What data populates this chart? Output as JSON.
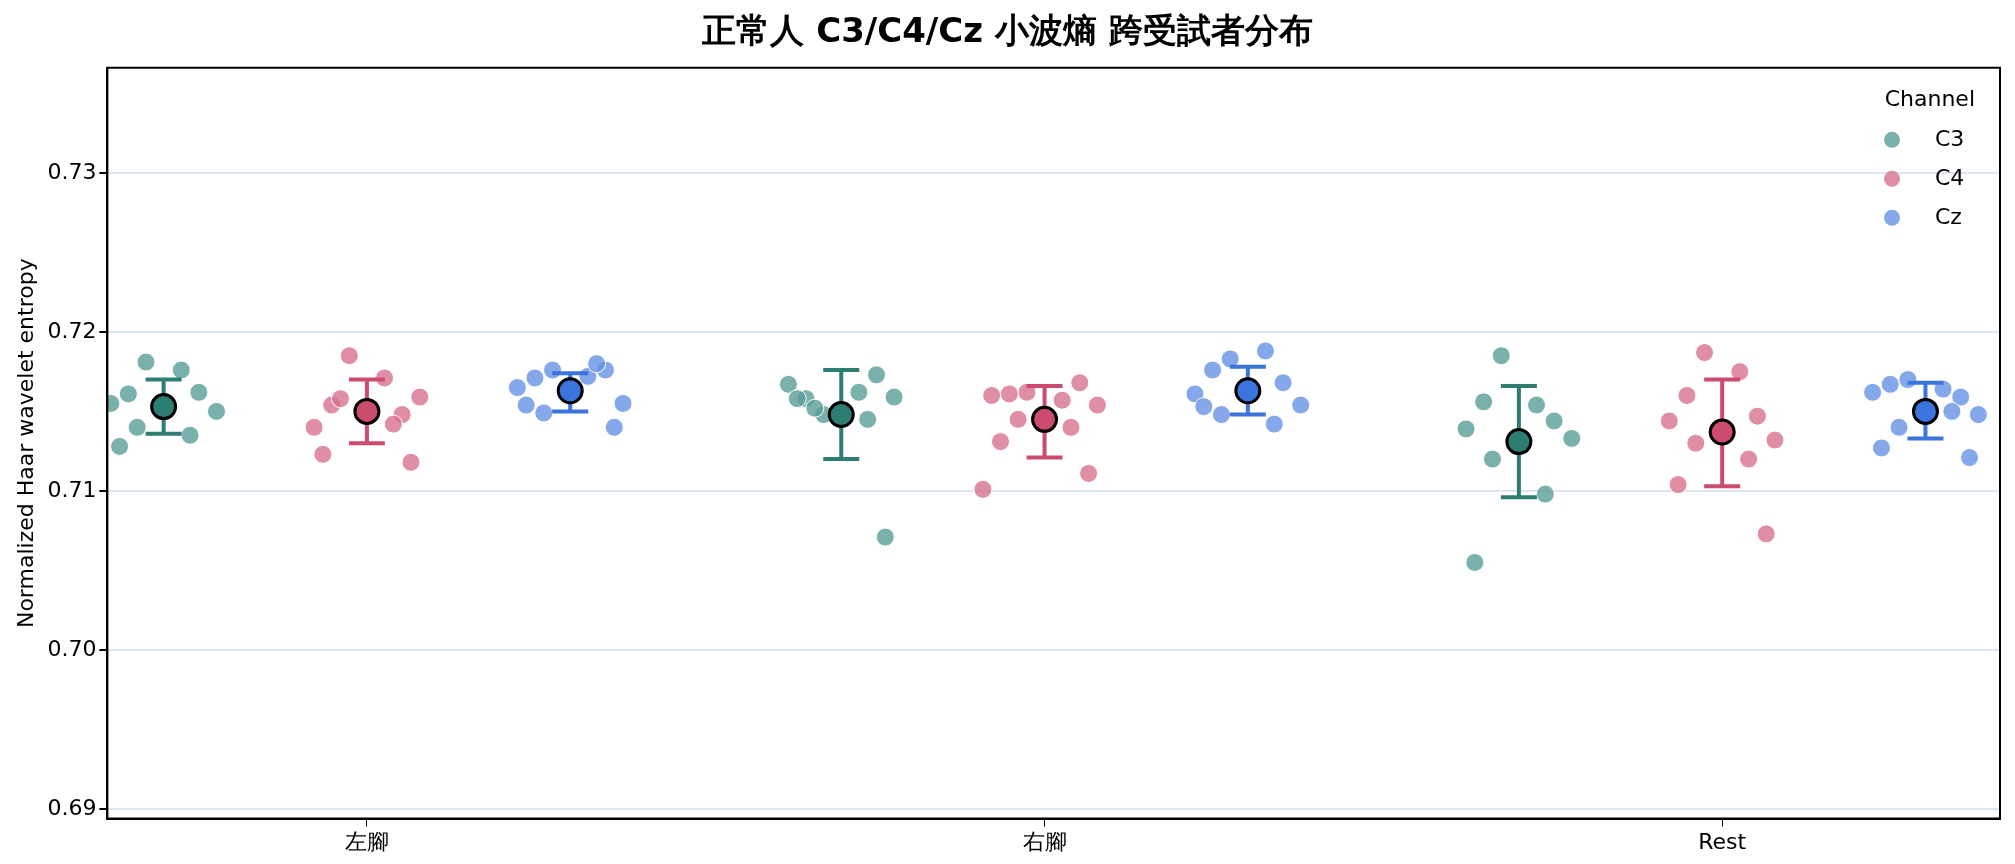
{
  "chart_data": {
    "type": "scatter",
    "title": "正常人 C3/C4/Cz 小波熵 跨受試者分布",
    "ylabel": "Normalized Haar wavelet entropy",
    "legend_title": "Channel",
    "legend": "top right",
    "grid": "y",
    "marker": "circle",
    "categories": [
      "左腳",
      "右腳",
      "Rest"
    ],
    "ylim": [
      0.6894,
      0.7366
    ],
    "yticks": [
      0.69,
      {
        "value": 0.7,
        "label": "0.70"
      },
      0.71,
      0.72,
      0.73
    ],
    "series": [
      {
        "name": "C3",
        "color": "#5a9e97",
        "x": [
          "左腳",
          "左腳",
          "左腳",
          "左腳",
          "左腳",
          "左腳",
          "左腳",
          "左腳",
          "左腳",
          "右腳",
          "右腳",
          "右腳",
          "右腳",
          "右腳",
          "右腳",
          "右腳",
          "右腳",
          "右腳",
          "右腳",
          "Rest",
          "Rest",
          "Rest",
          "Rest",
          "Rest",
          "Rest",
          "Rest",
          "Rest",
          "Rest"
        ],
        "values": [
          0.7181,
          0.7176,
          0.7161,
          0.7162,
          0.7155,
          0.715,
          0.714,
          0.7135,
          0.7128,
          0.7148,
          0.7162,
          0.7158,
          0.7173,
          0.7167,
          0.7159,
          0.7152,
          0.7145,
          0.7158,
          0.7071,
          0.7185,
          0.7154,
          0.7156,
          0.7144,
          0.7139,
          0.7133,
          0.712,
          0.7098,
          0.7055
        ]
      },
      {
        "name": "C4",
        "color": "#d8728c",
        "x": [
          "左腳",
          "左腳",
          "左腳",
          "左腳",
          "左腳",
          "左腳",
          "左腳",
          "左腳",
          "左腳",
          "左腳",
          "右腳",
          "右腳",
          "右腳",
          "右腳",
          "右腳",
          "右腳",
          "右腳",
          "右腳",
          "右腳",
          "右腳",
          "右腳",
          "Rest",
          "Rest",
          "Rest",
          "Rest",
          "Rest",
          "Rest",
          "Rest",
          "Rest",
          "Rest",
          "Rest"
        ],
        "values": [
          0.7185,
          0.7171,
          0.7154,
          0.7148,
          0.714,
          0.7159,
          0.7158,
          0.7142,
          0.7123,
          0.7118,
          0.7162,
          0.7157,
          0.7161,
          0.7168,
          0.716,
          0.7154,
          0.7145,
          0.714,
          0.7131,
          0.7111,
          0.7101,
          0.7187,
          0.7175,
          0.716,
          0.7147,
          0.7144,
          0.7132,
          0.713,
          0.712,
          0.7104,
          0.7073
        ]
      },
      {
        "name": "Cz",
        "color": "#6592e4",
        "x": [
          "左腳",
          "左腳",
          "左腳",
          "左腳",
          "左腳",
          "左腳",
          "左腳",
          "左腳",
          "左腳",
          "左腳",
          "右腳",
          "右腳",
          "右腳",
          "右腳",
          "右腳",
          "右腳",
          "右腳",
          "右腳",
          "右腳",
          "Rest",
          "Rest",
          "Rest",
          "Rest",
          "Rest",
          "Rest",
          "Rest",
          "Rest",
          "Rest",
          "Rest"
        ],
        "values": [
          0.7176,
          0.7172,
          0.7171,
          0.7176,
          0.7165,
          0.7155,
          0.7149,
          0.718,
          0.7154,
          0.714,
          0.7183,
          0.7188,
          0.7176,
          0.7168,
          0.7161,
          0.7154,
          0.7148,
          0.7142,
          0.7153,
          0.717,
          0.7164,
          0.7167,
          0.7159,
          0.7162,
          0.7148,
          0.714,
          0.715,
          0.7127,
          0.7121
        ]
      },
      {
        "color": "#2e7d73",
        "values": [
          0.7153,
          0.7148,
          0.7131
        ],
        "errors": [
          [
            0.7136,
            0.717
          ],
          [
            0.712,
            0.7176
          ],
          [
            0.7096,
            0.7166
          ]
        ]
      },
      {
        "color": "#cc4c6e",
        "values": [
          0.715,
          0.7145,
          0.7137
        ],
        "errors": [
          [
            0.713,
            0.717
          ],
          [
            0.7121,
            0.7166
          ],
          [
            0.7103,
            0.717
          ]
        ]
      },
      {
        "color": "#3b74dc",
        "values": [
          0.7163,
          0.7163,
          0.715
        ],
        "errors": [
          [
            0.715,
            0.7174
          ],
          [
            0.7148,
            0.7178
          ],
          [
            0.7133,
            0.7168
          ]
        ]
      }
    ]
  }
}
